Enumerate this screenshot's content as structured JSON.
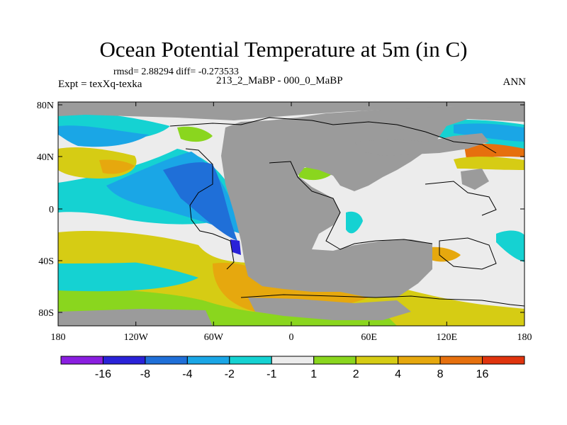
{
  "title": "Ocean Potential Temperature at 5m (in C)",
  "stats": "rmsd= 2.88294 diff= -0.273533",
  "expt": "Expt = texXq-texka",
  "period": "213_2_MaBP - 000_0_MaBP",
  "season": "ANN",
  "axes": {
    "x_ticks": [
      "180",
      "120W",
      "60W",
      "0",
      "60E",
      "120E",
      "180"
    ],
    "y_ticks": [
      "80N",
      "40N",
      "0",
      "40S",
      "80S"
    ]
  },
  "colorbar": {
    "labels": [
      "-16",
      "-8",
      "-4",
      "-2",
      "-1",
      "1",
      "2",
      "4",
      "8",
      "16"
    ],
    "colors": [
      "#8a1ee0",
      "#2a22d8",
      "#1f6fd8",
      "#1aa6e6",
      "#15d2d2",
      "#ececec",
      "#8ad61e",
      "#d6cc14",
      "#e6a80e",
      "#e6700e",
      "#e0340e"
    ]
  },
  "legend_colors": {
    "land": "#9b9b9b",
    "near_zero": "#ececec"
  }
}
